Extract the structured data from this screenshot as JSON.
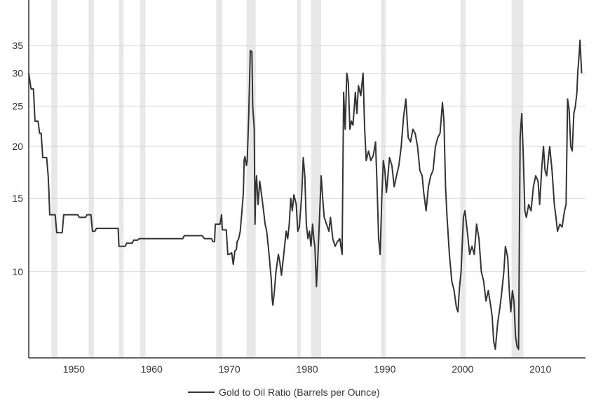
{
  "chart_data": {
    "type": "line",
    "title": "",
    "xlabel": "",
    "ylabel": "",
    "y_scale": "log",
    "xlim": [
      1944.2,
      2015.8
    ],
    "ylim": [
      6.2,
      45
    ],
    "grid": true,
    "legend_placement": "bottom-center",
    "x_ticks": [
      1950,
      1960,
      1970,
      1980,
      1990,
      2000,
      2010
    ],
    "x_tick_labels": [
      "1950",
      "1960",
      "1970",
      "1980",
      "1990",
      "2000",
      "2010"
    ],
    "y_ticks": [
      10,
      15,
      20,
      25,
      30,
      35
    ],
    "y_tick_labels": [
      "10",
      "15",
      "20",
      "25",
      "30",
      "35"
    ],
    "colors": {
      "line": "#333333",
      "recession_band": "#e8e8e8",
      "grid": "#d6d6d6",
      "axis": "#333333"
    },
    "recession_periods": [
      [
        1947.1,
        1947.9
      ],
      [
        1951.9,
        1952.6
      ],
      [
        1955.8,
        1956.4
      ],
      [
        1958.5,
        1959.2
      ],
      [
        1968.3,
        1969.1
      ],
      [
        1972.2,
        1973.4
      ],
      [
        1978.7,
        1979.2
      ],
      [
        1980.5,
        1981.8
      ],
      [
        1989.5,
        1990.1
      ],
      [
        1999.7,
        2000.4
      ],
      [
        2006.3,
        2007.8
      ]
    ],
    "series": [
      {
        "name": "Gold to Oil Ratio (Barrels per Ounce)",
        "points": [
          [
            1944.2,
            30.0
          ],
          [
            1944.5,
            27.5
          ],
          [
            1944.8,
            27.5
          ],
          [
            1945.0,
            23.0
          ],
          [
            1945.4,
            23.0
          ],
          [
            1945.6,
            21.5
          ],
          [
            1945.8,
            21.5
          ],
          [
            1946.0,
            18.8
          ],
          [
            1946.5,
            18.8
          ],
          [
            1946.7,
            17.0
          ],
          [
            1946.8,
            15.5
          ],
          [
            1946.9,
            13.7
          ],
          [
            1947.6,
            13.7
          ],
          [
            1947.8,
            12.4
          ],
          [
            1948.5,
            12.4
          ],
          [
            1948.7,
            13.7
          ],
          [
            1950.5,
            13.7
          ],
          [
            1950.7,
            13.5
          ],
          [
            1951.5,
            13.5
          ],
          [
            1951.7,
            13.7
          ],
          [
            1952.2,
            13.7
          ],
          [
            1952.4,
            12.5
          ],
          [
            1952.7,
            12.5
          ],
          [
            1952.9,
            12.7
          ],
          [
            1955.7,
            12.7
          ],
          [
            1955.8,
            11.5
          ],
          [
            1956.6,
            11.5
          ],
          [
            1956.8,
            11.7
          ],
          [
            1957.5,
            11.7
          ],
          [
            1957.7,
            11.9
          ],
          [
            1958.2,
            11.9
          ],
          [
            1958.4,
            12.0
          ],
          [
            1964.0,
            12.0
          ],
          [
            1964.2,
            12.2
          ],
          [
            1966.5,
            12.2
          ],
          [
            1966.8,
            12.0
          ],
          [
            1967.7,
            12.0
          ],
          [
            1967.9,
            11.8
          ],
          [
            1968.1,
            11.8
          ],
          [
            1968.2,
            13.0
          ],
          [
            1968.8,
            13.0
          ],
          [
            1969.0,
            13.7
          ],
          [
            1969.1,
            12.6
          ],
          [
            1969.6,
            12.6
          ],
          [
            1969.8,
            11.0
          ],
          [
            1970.0,
            11.0
          ],
          [
            1970.3,
            11.1
          ],
          [
            1970.5,
            10.4
          ],
          [
            1970.7,
            11.2
          ],
          [
            1970.9,
            11.3
          ],
          [
            1971.0,
            11.8
          ],
          [
            1971.2,
            12.0
          ],
          [
            1971.4,
            12.5
          ],
          [
            1971.6,
            13.8
          ],
          [
            1971.8,
            15.5
          ],
          [
            1971.9,
            18.5
          ],
          [
            1972.0,
            18.9
          ],
          [
            1972.2,
            18.0
          ],
          [
            1972.3,
            18.5
          ],
          [
            1972.5,
            24.0
          ],
          [
            1972.7,
            34.0
          ],
          [
            1972.9,
            33.8
          ],
          [
            1973.0,
            25.0
          ],
          [
            1973.2,
            22.0
          ],
          [
            1973.3,
            13.0
          ],
          [
            1973.4,
            16.0
          ],
          [
            1973.5,
            17.0
          ],
          [
            1973.7,
            14.5
          ],
          [
            1973.9,
            16.5
          ],
          [
            1974.0,
            16.0
          ],
          [
            1974.2,
            15.0
          ],
          [
            1974.4,
            14.0
          ],
          [
            1974.6,
            13.0
          ],
          [
            1974.8,
            12.5
          ],
          [
            1975.0,
            11.5
          ],
          [
            1975.2,
            10.5
          ],
          [
            1975.4,
            9.5
          ],
          [
            1975.5,
            8.6
          ],
          [
            1975.6,
            8.3
          ],
          [
            1975.8,
            9.0
          ],
          [
            1976.0,
            10.0
          ],
          [
            1976.3,
            11.0
          ],
          [
            1976.5,
            10.5
          ],
          [
            1976.7,
            9.8
          ],
          [
            1977.0,
            11.0
          ],
          [
            1977.3,
            12.5
          ],
          [
            1977.5,
            12.0
          ],
          [
            1977.7,
            13.0
          ],
          [
            1977.9,
            15.0
          ],
          [
            1978.1,
            14.0
          ],
          [
            1978.3,
            15.3
          ],
          [
            1978.6,
            14.5
          ],
          [
            1978.8,
            12.5
          ],
          [
            1979.0,
            12.8
          ],
          [
            1979.3,
            15.2
          ],
          [
            1979.5,
            18.8
          ],
          [
            1979.7,
            17.0
          ],
          [
            1979.9,
            13.0
          ],
          [
            1980.1,
            12.0
          ],
          [
            1980.3,
            12.5
          ],
          [
            1980.5,
            11.5
          ],
          [
            1980.7,
            13.0
          ],
          [
            1980.9,
            11.8
          ],
          [
            1981.0,
            11.5
          ],
          [
            1981.2,
            9.2
          ],
          [
            1981.4,
            11.0
          ],
          [
            1981.6,
            13.5
          ],
          [
            1981.8,
            17.0
          ],
          [
            1982.0,
            15.0
          ],
          [
            1982.2,
            13.5
          ],
          [
            1982.5,
            13.0
          ],
          [
            1982.8,
            12.5
          ],
          [
            1983.0,
            13.5
          ],
          [
            1983.3,
            12.0
          ],
          [
            1983.6,
            11.5
          ],
          [
            1983.9,
            11.8
          ],
          [
            1984.2,
            12.0
          ],
          [
            1984.5,
            11.0
          ],
          [
            1984.7,
            27.0
          ],
          [
            1984.9,
            22.0
          ],
          [
            1985.1,
            30.0
          ],
          [
            1985.3,
            28.5
          ],
          [
            1985.5,
            22.0
          ],
          [
            1985.7,
            23.0
          ],
          [
            1985.9,
            22.5
          ],
          [
            1986.2,
            27.0
          ],
          [
            1986.4,
            24.0
          ],
          [
            1986.6,
            28.0
          ],
          [
            1986.9,
            26.5
          ],
          [
            1987.2,
            30.0
          ],
          [
            1987.4,
            22.0
          ],
          [
            1987.6,
            18.5
          ],
          [
            1987.9,
            19.5
          ],
          [
            1988.2,
            18.5
          ],
          [
            1988.5,
            19.0
          ],
          [
            1988.8,
            20.5
          ],
          [
            1989.0,
            16.0
          ],
          [
            1989.2,
            12.0
          ],
          [
            1989.4,
            11.0
          ],
          [
            1989.6,
            15.0
          ],
          [
            1989.8,
            18.5
          ],
          [
            1990.0,
            17.5
          ],
          [
            1990.2,
            15.5
          ],
          [
            1990.4,
            17.0
          ],
          [
            1990.6,
            18.8
          ],
          [
            1990.9,
            18.0
          ],
          [
            1991.2,
            16.0
          ],
          [
            1991.5,
            17.0
          ],
          [
            1991.8,
            18.0
          ],
          [
            1992.1,
            20.0
          ],
          [
            1992.4,
            23.5
          ],
          [
            1992.7,
            26.0
          ],
          [
            1993.0,
            21.0
          ],
          [
            1993.3,
            20.5
          ],
          [
            1993.6,
            22.0
          ],
          [
            1993.9,
            21.5
          ],
          [
            1994.2,
            20.0
          ],
          [
            1994.5,
            17.5
          ],
          [
            1994.8,
            17.0
          ],
          [
            1995.0,
            15.5
          ],
          [
            1995.3,
            14.0
          ],
          [
            1995.6,
            16.0
          ],
          [
            1995.9,
            17.0
          ],
          [
            1996.2,
            17.5
          ],
          [
            1996.5,
            20.0
          ],
          [
            1996.8,
            21.0
          ],
          [
            1997.1,
            21.5
          ],
          [
            1997.4,
            25.5
          ],
          [
            1997.6,
            23.0
          ],
          [
            1997.8,
            16.0
          ],
          [
            1998.0,
            13.5
          ],
          [
            1998.3,
            11.0
          ],
          [
            1998.6,
            9.5
          ],
          [
            1998.9,
            9.0
          ],
          [
            1999.2,
            8.2
          ],
          [
            1999.4,
            8.0
          ],
          [
            1999.6,
            9.2
          ],
          [
            1999.8,
            10.0
          ],
          [
            2000.1,
            13.5
          ],
          [
            2000.3,
            14.0
          ],
          [
            2000.6,
            12.5
          ],
          [
            2000.9,
            11.0
          ],
          [
            2001.2,
            11.5
          ],
          [
            2001.5,
            11.0
          ],
          [
            2001.8,
            13.0
          ],
          [
            2002.1,
            12.0
          ],
          [
            2002.4,
            10.0
          ],
          [
            2002.7,
            9.5
          ],
          [
            2003.0,
            8.5
          ],
          [
            2003.3,
            9.0
          ],
          [
            2003.6,
            8.3
          ],
          [
            2003.8,
            7.8
          ],
          [
            2004.0,
            6.8
          ],
          [
            2004.2,
            6.5
          ],
          [
            2004.5,
            7.5
          ],
          [
            2004.8,
            8.2
          ],
          [
            2005.0,
            8.8
          ],
          [
            2005.3,
            10.0
          ],
          [
            2005.5,
            11.5
          ],
          [
            2005.8,
            10.8
          ],
          [
            2006.0,
            9.0
          ],
          [
            2006.2,
            8.0
          ],
          [
            2006.4,
            9.0
          ],
          [
            2006.6,
            8.5
          ],
          [
            2006.8,
            7.0
          ],
          [
            2007.0,
            6.6
          ],
          [
            2007.2,
            6.5
          ],
          [
            2007.4,
            21.0
          ],
          [
            2007.6,
            24.0
          ],
          [
            2007.8,
            19.0
          ],
          [
            2008.0,
            14.0
          ],
          [
            2008.2,
            13.5
          ],
          [
            2008.5,
            14.5
          ],
          [
            2008.8,
            14.0
          ],
          [
            2009.1,
            16.0
          ],
          [
            2009.4,
            17.0
          ],
          [
            2009.7,
            16.5
          ],
          [
            2009.9,
            14.5
          ],
          [
            2010.2,
            18.0
          ],
          [
            2010.4,
            20.0
          ],
          [
            2010.6,
            17.5
          ],
          [
            2010.8,
            17.0
          ],
          [
            2011.0,
            18.5
          ],
          [
            2011.2,
            20.0
          ],
          [
            2011.5,
            17.5
          ],
          [
            2011.8,
            14.5
          ],
          [
            2012.0,
            13.5
          ],
          [
            2012.2,
            12.5
          ],
          [
            2012.5,
            13.0
          ],
          [
            2012.8,
            12.8
          ],
          [
            2013.1,
            14.0
          ],
          [
            2013.3,
            14.5
          ],
          [
            2013.5,
            26.0
          ],
          [
            2013.7,
            24.5
          ],
          [
            2013.9,
            20.0
          ],
          [
            2014.1,
            19.5
          ],
          [
            2014.3,
            24.0
          ],
          [
            2014.5,
            25.0
          ],
          [
            2014.7,
            27.0
          ],
          [
            2014.8,
            30.0
          ],
          [
            2015.0,
            33.5
          ],
          [
            2015.1,
            36.0
          ],
          [
            2015.3,
            30.0
          ]
        ]
      }
    ]
  },
  "legend": {
    "label": "Gold to Oil Ratio (Barrels per Ounce)"
  }
}
